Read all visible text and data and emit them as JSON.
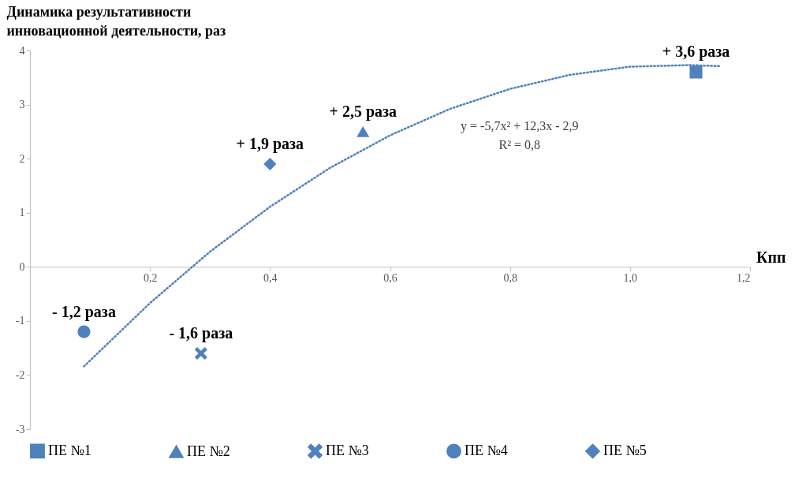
{
  "chart_data": {
    "type": "scatter",
    "ylabel": "Динамика результативности инновационной деятельности, раз",
    "xlabel": "Кпп",
    "xlim": [
      0,
      1.2
    ],
    "xticks": [
      {
        "value": 0.2,
        "label": "0,2"
      },
      {
        "value": 0.4,
        "label": "0,4"
      },
      {
        "value": 0.6,
        "label": "0,6"
      },
      {
        "value": 0.8,
        "label": "0,8"
      },
      {
        "value": 1.0,
        "label": "1,0"
      },
      {
        "value": 1.2,
        "label": "1,2"
      }
    ],
    "ylim": [
      -3,
      4
    ],
    "yticks": [
      -3,
      -2,
      -1,
      0,
      1,
      2,
      3,
      4
    ],
    "grid": false,
    "legend": "bottom",
    "series": [
      {
        "name": "ПЕ №1",
        "color": "#4f81bd",
        "marker": "square",
        "x": [
          1.11
        ],
        "values": [
          3.6
        ],
        "value_labels": [
          "+ 3,6 раза"
        ]
      },
      {
        "name": "ПЕ №2",
        "color": "#4f81bd",
        "marker": "triangle",
        "x": [
          0.555
        ],
        "values": [
          2.5
        ],
        "value_labels": [
          "+ 2,5 раза"
        ]
      },
      {
        "name": "ПЕ №3",
        "color": "#4f81bd",
        "marker": "cross",
        "x": [
          0.285
        ],
        "values": [
          -1.6
        ],
        "value_labels": [
          "- 1,6 раза"
        ]
      },
      {
        "name": "ПЕ №4",
        "color": "#4f81bd",
        "marker": "circle",
        "x": [
          0.09
        ],
        "values": [
          -1.2
        ],
        "value_labels": [
          "- 1,2 раза"
        ]
      },
      {
        "name": "ПЕ №5",
        "color": "#4f81bd",
        "marker": "diamond",
        "x": [
          0.4
        ],
        "values": [
          1.9
        ],
        "value_labels": [
          "+ 1,9 раза"
        ]
      },
      {
        "type": "line",
        "color": "#4f81bd",
        "line_style": "dotted",
        "marker": "none",
        "x": [
          0.09,
          0.2,
          0.3,
          0.4,
          0.5,
          0.6,
          0.7,
          0.8,
          0.9,
          1.0,
          1.1,
          1.15
        ],
        "values": [
          -1.84,
          -0.67,
          0.28,
          1.11,
          1.83,
          2.43,
          2.92,
          3.29,
          3.55,
          3.7,
          3.73,
          3.71
        ]
      }
    ],
    "annotations": [
      "y = -5,7x² + 12,3x - 2,9",
      "R² = 0,8"
    ]
  }
}
